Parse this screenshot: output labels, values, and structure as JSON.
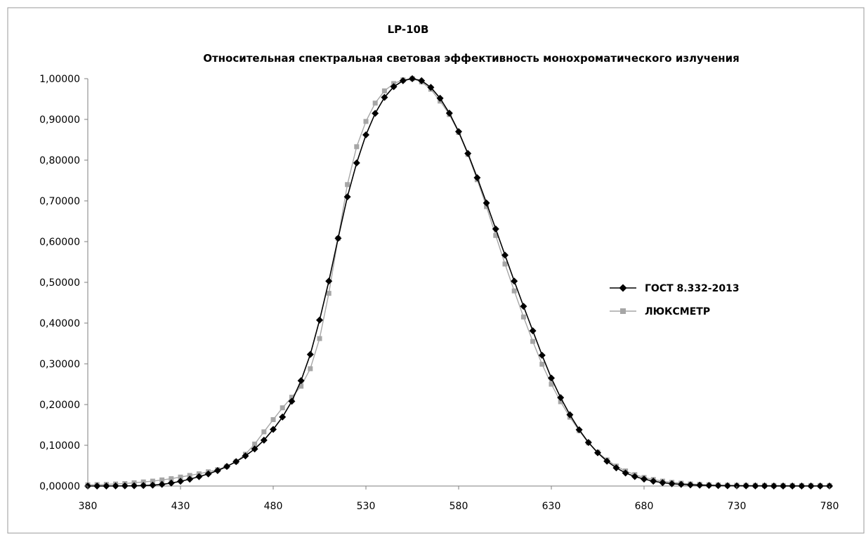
{
  "chart_data": {
    "type": "line",
    "title": "LP-10B",
    "subtitle": "Относительная спектральная световая эффективность монохроматического излучения",
    "xlabel": "",
    "ylabel": "",
    "xlim": [
      380,
      780
    ],
    "ylim": [
      0,
      1
    ],
    "xticks": [
      380,
      430,
      480,
      530,
      580,
      630,
      680,
      730,
      780
    ],
    "yticks": [
      0,
      0.1,
      0.2,
      0.3,
      0.4,
      0.5,
      0.6,
      0.7,
      0.8,
      0.9,
      1.0
    ],
    "ytick_labels": [
      "0,00000",
      "0,10000",
      "0,20000",
      "0,30000",
      "0,40000",
      "0,50000",
      "0,60000",
      "0,70000",
      "0,80000",
      "0,90000",
      "1,00000"
    ],
    "xtick_labels": [
      "380",
      "430",
      "480",
      "530",
      "580",
      "630",
      "680",
      "730",
      "780"
    ],
    "grid": false,
    "legend_position": "right",
    "x": [
      380,
      385,
      390,
      395,
      400,
      405,
      410,
      415,
      420,
      425,
      430,
      435,
      440,
      445,
      450,
      455,
      460,
      465,
      470,
      475,
      480,
      485,
      490,
      495,
      500,
      505,
      510,
      515,
      520,
      525,
      530,
      535,
      540,
      545,
      550,
      555,
      560,
      565,
      570,
      575,
      580,
      585,
      590,
      595,
      600,
      605,
      610,
      615,
      620,
      625,
      630,
      635,
      640,
      645,
      650,
      655,
      660,
      665,
      670,
      675,
      680,
      685,
      690,
      695,
      700,
      705,
      710,
      715,
      720,
      725,
      730,
      735,
      740,
      745,
      750,
      755,
      760,
      765,
      770,
      775,
      780
    ],
    "series": [
      {
        "name": "ГОСТ 8.332-2013",
        "color": "#000000",
        "marker": "diamond",
        "values": [
          0.0,
          0.0001,
          0.0001,
          0.0002,
          0.0004,
          0.0006,
          0.0012,
          0.0022,
          0.004,
          0.0073,
          0.0116,
          0.0168,
          0.023,
          0.0298,
          0.038,
          0.048,
          0.06,
          0.0739,
          0.091,
          0.1126,
          0.139,
          0.1693,
          0.208,
          0.2586,
          0.323,
          0.4073,
          0.503,
          0.6082,
          0.71,
          0.7932,
          0.862,
          0.9149,
          0.954,
          0.9803,
          0.995,
          1.0,
          0.995,
          0.9786,
          0.952,
          0.9154,
          0.87,
          0.8163,
          0.757,
          0.6949,
          0.631,
          0.5668,
          0.503,
          0.4412,
          0.381,
          0.321,
          0.265,
          0.217,
          0.175,
          0.1382,
          0.107,
          0.0816,
          0.061,
          0.0446,
          0.032,
          0.0232,
          0.017,
          0.0119,
          0.0082,
          0.0057,
          0.0041,
          0.0029,
          0.0021,
          0.0015,
          0.001,
          0.0007,
          0.0005,
          0.0004,
          0.0002,
          0.0002,
          0.0001,
          0.0001,
          0.0001,
          0.0,
          0.0,
          0.0,
          0.0
        ]
      },
      {
        "name": "ЛЮКСМЕТР",
        "color": "#a6a6a6",
        "marker": "square",
        "values": [
          0.003,
          0.0035,
          0.004,
          0.005,
          0.006,
          0.008,
          0.01,
          0.012,
          0.015,
          0.018,
          0.022,
          0.026,
          0.03,
          0.035,
          0.04,
          0.048,
          0.06,
          0.078,
          0.103,
          0.133,
          0.163,
          0.192,
          0.218,
          0.245,
          0.288,
          0.362,
          0.473,
          0.608,
          0.74,
          0.833,
          0.895,
          0.94,
          0.97,
          0.988,
          0.997,
          1.0,
          0.992,
          0.974,
          0.945,
          0.912,
          0.868,
          0.814,
          0.752,
          0.686,
          0.615,
          0.545,
          0.479,
          0.415,
          0.355,
          0.299,
          0.25,
          0.207,
          0.169,
          0.136,
          0.106,
          0.083,
          0.064,
          0.049,
          0.037,
          0.028,
          0.021,
          0.016,
          0.012,
          0.009,
          0.007,
          0.005,
          0.004,
          0.003,
          0.0025,
          0.002,
          0.0018,
          0.0016,
          0.0015,
          0.0014,
          0.0013,
          0.0012,
          0.0012,
          0.0011,
          0.0011,
          0.001,
          0.001
        ]
      }
    ]
  }
}
